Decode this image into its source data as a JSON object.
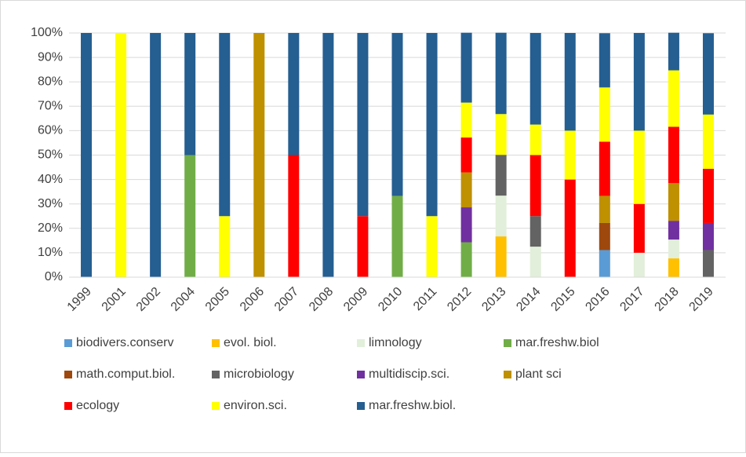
{
  "chart_data": {
    "type": "stacked_bar",
    "categories": [
      "1999",
      "2001",
      "2002",
      "2004",
      "2005",
      "2006",
      "2007",
      "2008",
      "2009",
      "2010",
      "2011",
      "2012",
      "2013",
      "2014",
      "2015",
      "2016",
      "2017",
      "2018",
      "2019"
    ],
    "series": [
      {
        "name": "biodivers.conserv",
        "color": "#5b9bd5",
        "values": [
          0,
          0,
          0,
          0,
          0,
          0,
          0,
          0,
          0,
          0,
          0,
          0,
          0,
          0,
          0,
          11.1,
          0,
          0,
          0
        ]
      },
      {
        "name": "evol. biol.",
        "color": "#ffc000",
        "values": [
          0,
          0,
          0,
          0,
          0,
          0,
          0,
          0,
          0,
          0,
          0,
          0,
          16.7,
          0,
          0,
          0,
          0,
          7.7,
          0
        ]
      },
      {
        "name": "limnology",
        "color": "#e2efda",
        "values": [
          0,
          0,
          0,
          0,
          0,
          0,
          0,
          0,
          0,
          0,
          0,
          0,
          16.7,
          12.5,
          0,
          0,
          10,
          7.7,
          0
        ]
      },
      {
        "name": "mar.freshw.biol",
        "color": "#70ad47",
        "values": [
          0,
          0,
          0,
          50,
          0,
          0,
          0,
          0,
          0,
          33.3,
          0,
          14.3,
          0,
          0,
          0,
          0,
          0,
          0,
          0
        ]
      },
      {
        "name": "math.comput.biol.",
        "color": "#9e480e",
        "values": [
          0,
          0,
          0,
          0,
          0,
          0,
          0,
          0,
          0,
          0,
          0,
          0,
          0,
          0,
          0,
          11.1,
          0,
          0,
          0
        ]
      },
      {
        "name": "microbiology",
        "color": "#636363",
        "values": [
          0,
          0,
          0,
          0,
          0,
          0,
          0,
          0,
          0,
          0,
          0,
          0,
          16.7,
          12.5,
          0,
          0,
          0,
          0,
          11.1
        ]
      },
      {
        "name": "multidiscip.sci.",
        "color": "#7030a0",
        "values": [
          0,
          0,
          0,
          0,
          0,
          0,
          0,
          0,
          0,
          0,
          0,
          14.3,
          0,
          0,
          0,
          0,
          0,
          7.7,
          11.1
        ]
      },
      {
        "name": "plant sci",
        "color": "#bf9000",
        "values": [
          0,
          0,
          0,
          0,
          0,
          100,
          0,
          0,
          0,
          0,
          0,
          14.3,
          0,
          0,
          0,
          11.1,
          0,
          15.4,
          0
        ]
      },
      {
        "name": "ecology",
        "color": "#ff0000",
        "values": [
          0,
          0,
          0,
          0,
          0,
          0,
          50,
          0,
          25,
          0,
          0,
          14.3,
          0,
          25,
          40,
          22.2,
          20,
          23.1,
          22.2
        ]
      },
      {
        "name": "environ.sci.",
        "color": "#ffff00",
        "values": [
          0,
          100,
          0,
          0,
          25,
          0,
          0,
          0,
          0,
          0,
          25,
          14.3,
          16.7,
          12.5,
          20,
          22.2,
          30,
          23.1,
          22.2
        ]
      },
      {
        "name": "mar.freshw.biol.",
        "color": "#255e91",
        "values": [
          100,
          0,
          100,
          50,
          75,
          0,
          50,
          100,
          75,
          66.7,
          75,
          28.6,
          33.3,
          37.5,
          40,
          22.2,
          40,
          15.4,
          33.3
        ]
      }
    ],
    "ylim": [
      0,
      100
    ],
    "yticks": [
      {
        "value": 0,
        "label": "0%"
      },
      {
        "value": 10,
        "label": "10%"
      },
      {
        "value": 20,
        "label": "20%"
      },
      {
        "value": 30,
        "label": "30%"
      },
      {
        "value": 40,
        "label": "40%"
      },
      {
        "value": 50,
        "label": "50%"
      },
      {
        "value": 60,
        "label": "60%"
      },
      {
        "value": 70,
        "label": "70%"
      },
      {
        "value": 80,
        "label": "80%"
      },
      {
        "value": 90,
        "label": "90%"
      },
      {
        "value": 100,
        "label": "100%"
      }
    ],
    "grid": true,
    "legend": "bottom"
  }
}
